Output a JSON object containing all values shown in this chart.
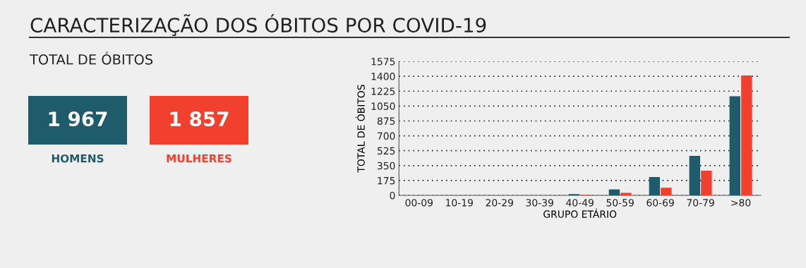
{
  "chart_data": [
    {
      "type": "other",
      "title": "CARACTERIZAÇÃO DOS ÓBITOS POR COVID-19",
      "subtitle": "TOTAL DE ÓBITOS",
      "categories": [
        "HOMENS",
        "MULHERES"
      ],
      "value_labels": [
        "1 967",
        "1 857"
      ],
      "colors": [
        "#1e5c6c",
        "#f2402e"
      ]
    },
    {
      "type": "bar",
      "xlabel": "GRUPO ETÁRIO",
      "ylabel": "TOTAL DE ÓBITOS",
      "categories": [
        "00-09",
        "10-19",
        "20-29",
        "30-39",
        "40-49",
        "50-59",
        "60-69",
        "70-79",
        ">80"
      ],
      "series": [
        {
          "color": "#1e5c6c",
          "values": [
            0,
            0,
            0,
            0,
            15,
            70,
            215,
            465,
            1165
          ]
        },
        {
          "color": "#f2402e",
          "values": [
            0,
            0,
            0,
            0,
            5,
            30,
            90,
            290,
            1410
          ]
        }
      ],
      "ylim": [
        0,
        1575
      ],
      "yticks": [
        0,
        175,
        350,
        525,
        700,
        875,
        1050,
        1225,
        1400,
        1575
      ],
      "grid": "y"
    }
  ]
}
